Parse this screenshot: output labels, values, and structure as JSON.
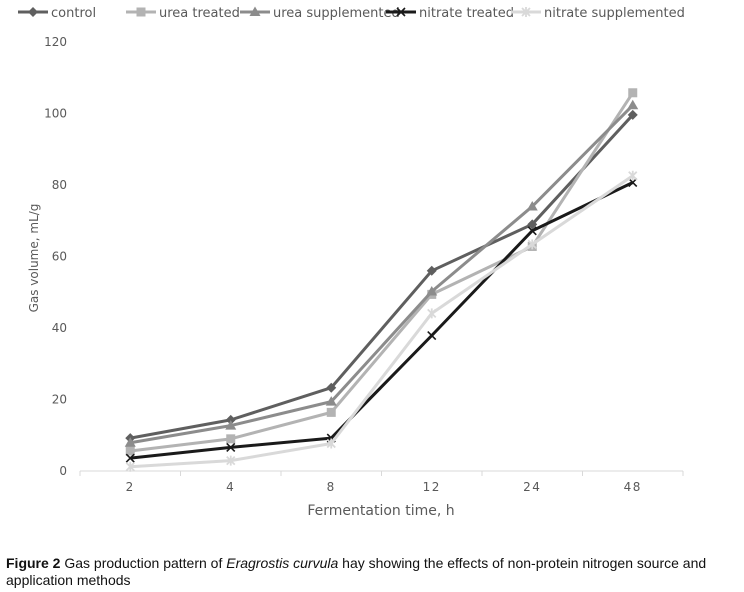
{
  "chart_data": {
    "type": "line",
    "categories": [
      "2",
      "4",
      "8",
      "12",
      "24",
      "48"
    ],
    "ylabel": "Gas volume, mL/g",
    "xlabel": "Fermentation time, h",
    "ylim": [
      0,
      120
    ],
    "yticks": [
      "0",
      "20",
      "40",
      "60",
      "80",
      "100",
      "120"
    ],
    "grid": false,
    "legend_position": "top",
    "series": [
      {
        "name": "control",
        "color": "#5f5f5f",
        "marker": "diamond",
        "values": [
          9.2,
          14.3,
          23.3,
          56.0,
          69.0,
          99.6
        ]
      },
      {
        "name": "urea treated",
        "color": "#b3b3b3",
        "marker": "square",
        "values": [
          5.6,
          9.0,
          16.4,
          49.4,
          62.8,
          105.8
        ]
      },
      {
        "name": "urea supplemented",
        "color": "#8c8c8c",
        "marker": "triangle",
        "values": [
          7.9,
          12.7,
          19.4,
          50.2,
          74.0,
          102.3
        ]
      },
      {
        "name": "nitrate treated",
        "color": "#1a1a1a",
        "marker": "x",
        "values": [
          3.6,
          6.6,
          9.2,
          37.9,
          67.2,
          80.7
        ]
      },
      {
        "name": "nitrate supplemented",
        "color": "#d9d9d9",
        "marker": "star",
        "values": [
          1.2,
          2.9,
          7.7,
          44.1,
          63.4,
          82.6
        ]
      }
    ]
  },
  "caption": {
    "label": "Figure 2",
    "text_before": " Gas production pattern of ",
    "species": "Eragrostis curvula",
    "text_after": " hay showing the effects of non-protein nitrogen source and application methods"
  }
}
